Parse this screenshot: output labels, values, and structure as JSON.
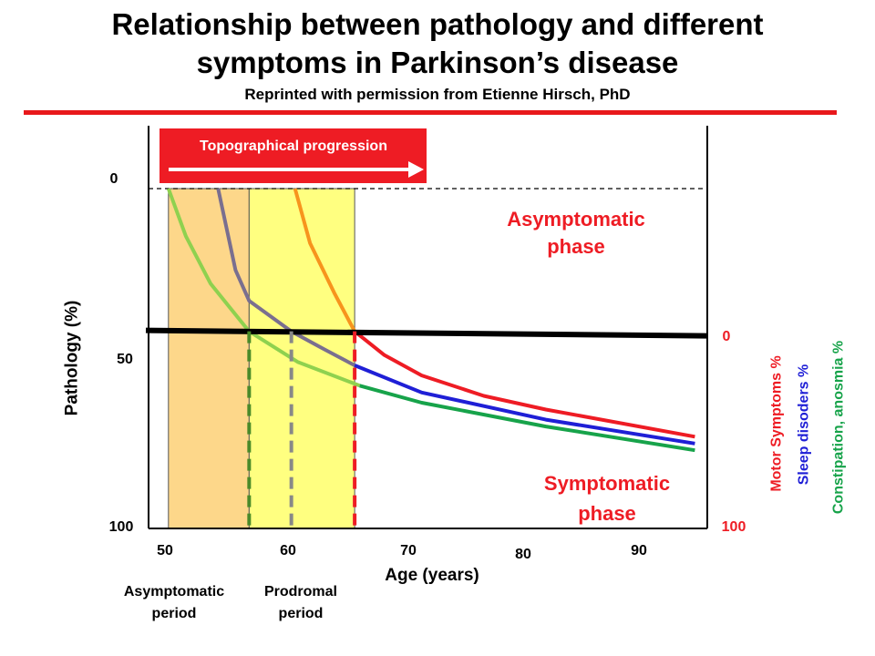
{
  "title_line1": "Relationship between pathology and different",
  "title_line2": "symptoms in Parkinson’s disease",
  "subtitle": "Reprinted with permission from Etienne Hirsch, PhD",
  "colors": {
    "rule": "#e8181b",
    "asymptomatic_period_fill": "#fdd78a",
    "prodromal_period_fill": "#ffff80",
    "motor": "#ee1c24",
    "sleep": "#1f1fd6",
    "constipation": "#17a34a",
    "banner": "#ee1c24"
  },
  "chart_data": {
    "type": "line",
    "title": "Relationship between pathology and different symptoms in Parkinson’s disease",
    "xlabel": "Age (years)",
    "ylabel": "Pathology (%)",
    "x_ticks": [
      "50",
      "60",
      "70",
      "80",
      "90"
    ],
    "y_ticks_left": [
      "0",
      "50",
      "100"
    ],
    "y_ticks_right": [
      "0",
      "100"
    ],
    "xlim": [
      48,
      93
    ],
    "ylim_pathology": [
      0,
      100
    ],
    "threshold_pathology": 42,
    "banner": "Topographical progression",
    "phase_top": "Asymptomatic phase",
    "phase_bottom": "Symptomatic phase",
    "right_axis_labels": [
      "Motor Symptoms %",
      "Sleep disoders %",
      "Constipation,  anosmia %"
    ],
    "periods": [
      {
        "label_line1": "Asymptomatic",
        "label_line2": "period",
        "x_start": 49.6,
        "x_end": 56.1
      },
      {
        "label_line1": "Prodromal",
        "label_line2": "period",
        "x_start": 56.1,
        "x_end": 64.6
      }
    ],
    "series": [
      {
        "name": "Constipation,  anosmia %",
        "color_key": "constipation",
        "onset_age": 49.6,
        "threshold_age": 56.1,
        "x": [
          49.6,
          51,
          53,
          56.1,
          60,
          65,
          70,
          80,
          92
        ],
        "y": [
          0,
          14,
          28,
          42,
          51,
          58,
          63,
          70,
          77
        ]
      },
      {
        "name": "Sleep disoders %",
        "color_key": "sleep",
        "onset_age": 53.6,
        "threshold_age": 59.5,
        "x": [
          53.6,
          55,
          56.1,
          59.5,
          62,
          64.6,
          70,
          80,
          92
        ],
        "y": [
          0,
          24,
          33,
          42,
          47,
          52,
          60,
          68,
          75
        ]
      },
      {
        "name": "Motor Symptoms %",
        "color_key": "motor",
        "onset_age": 59.8,
        "threshold_age": 64.6,
        "x": [
          59.8,
          61,
          63,
          64.6,
          67,
          70,
          75,
          80,
          92
        ],
        "y": [
          0,
          16,
          31,
          42,
          49,
          55,
          61,
          65,
          73
        ]
      }
    ],
    "threshold_markers": [
      {
        "x": 56.1,
        "color": "#4a8a2a"
      },
      {
        "x": 59.5,
        "color": "#888888"
      },
      {
        "x": 64.6,
        "color": "#ee1c24"
      }
    ]
  }
}
